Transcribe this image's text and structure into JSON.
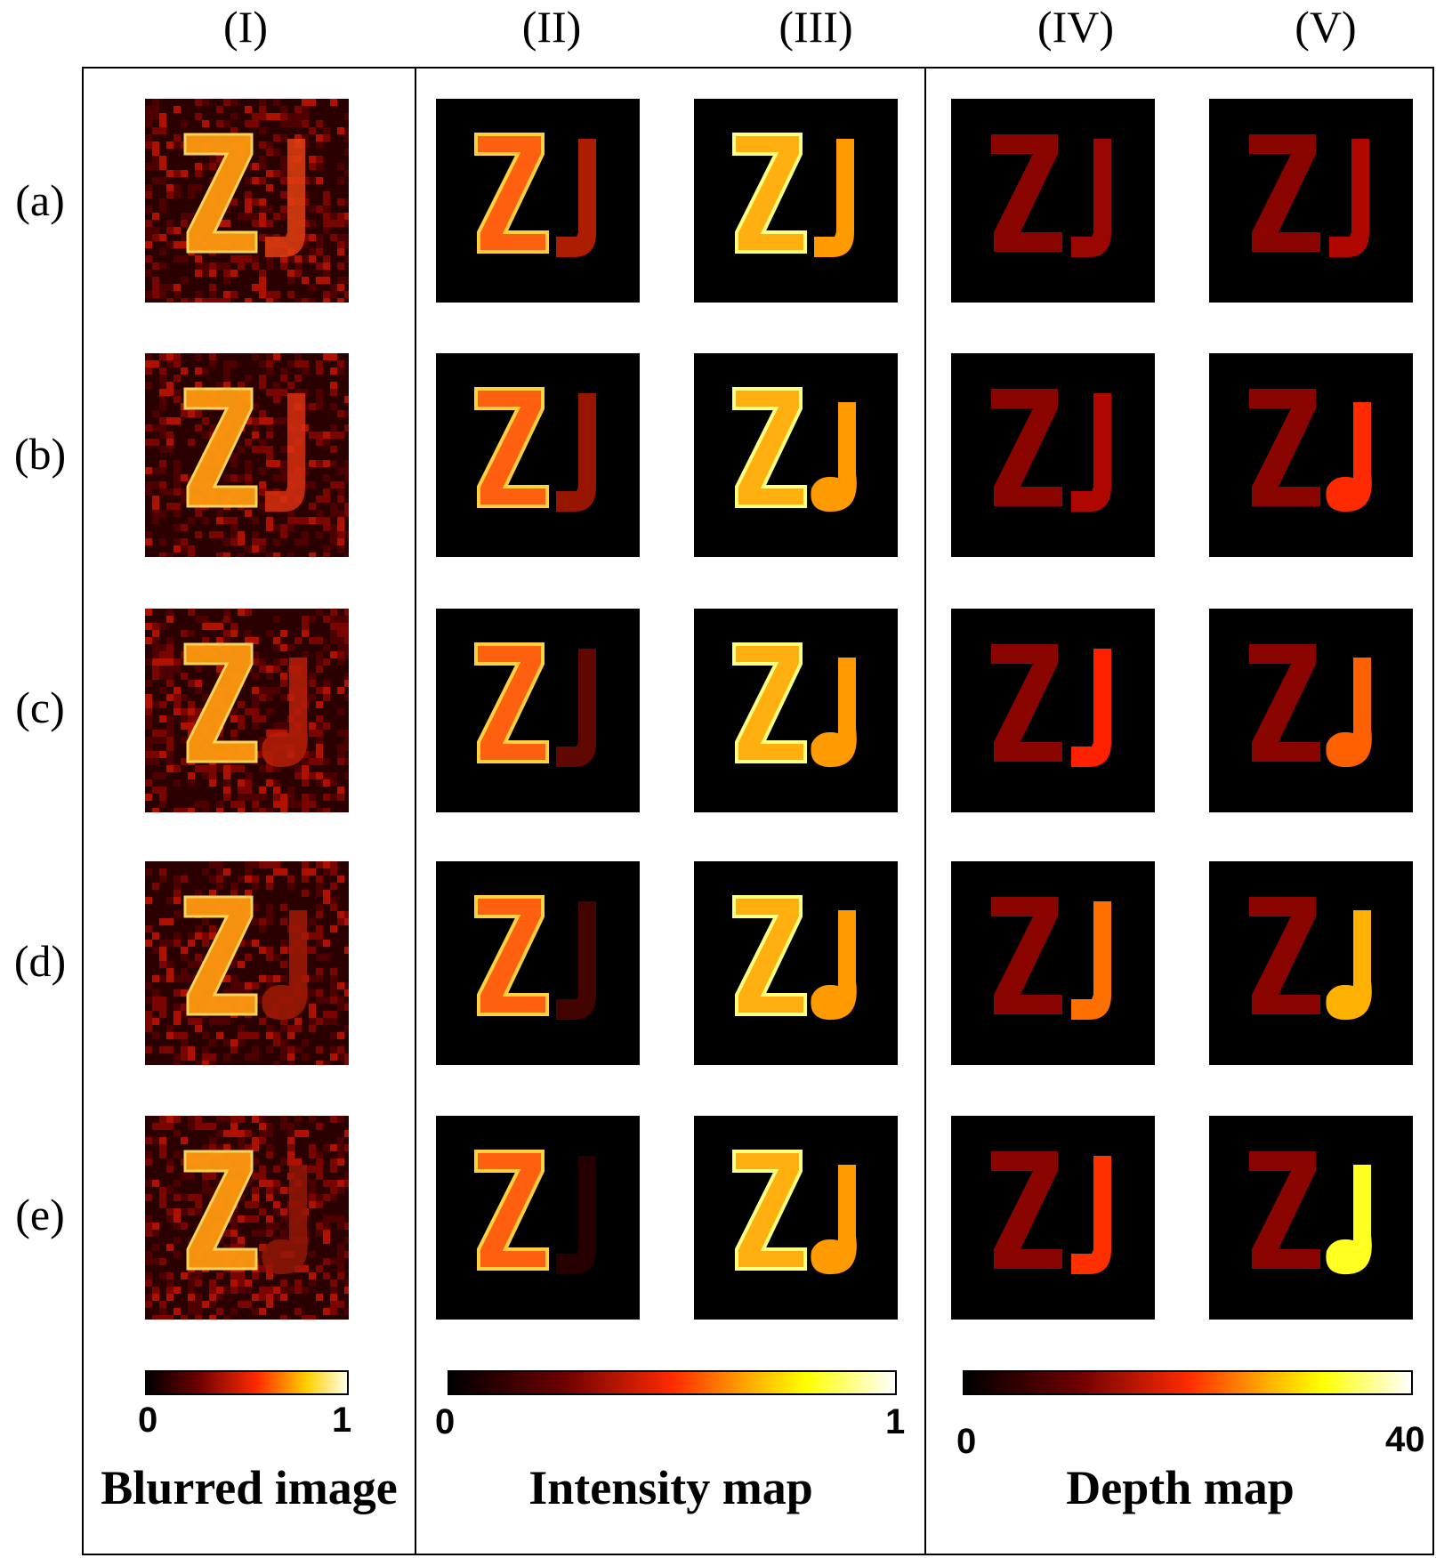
{
  "columns": {
    "c1": "(I)",
    "c2": "(II)",
    "c3": "(III)",
    "c4": "(IV)",
    "c5": "(V)"
  },
  "rows": {
    "r1": "(a)",
    "r2": "(b)",
    "r3": "(c)",
    "r4": "(d)",
    "r5": "(e)"
  },
  "panels": {
    "blurred": {
      "label": "Blurred image",
      "min": "0",
      "max": "1"
    },
    "intensity": {
      "label": "Intensity map",
      "min": "0",
      "max": "1"
    },
    "depth": {
      "label": "Depth map",
      "min": "0",
      "max": "40"
    }
  },
  "colors": {
    "background": "#000000",
    "hot_low": "#3a0000",
    "hot_mid": "#ff2000",
    "hot_high": "#ffe000",
    "hot_top": "#ffffff"
  }
}
